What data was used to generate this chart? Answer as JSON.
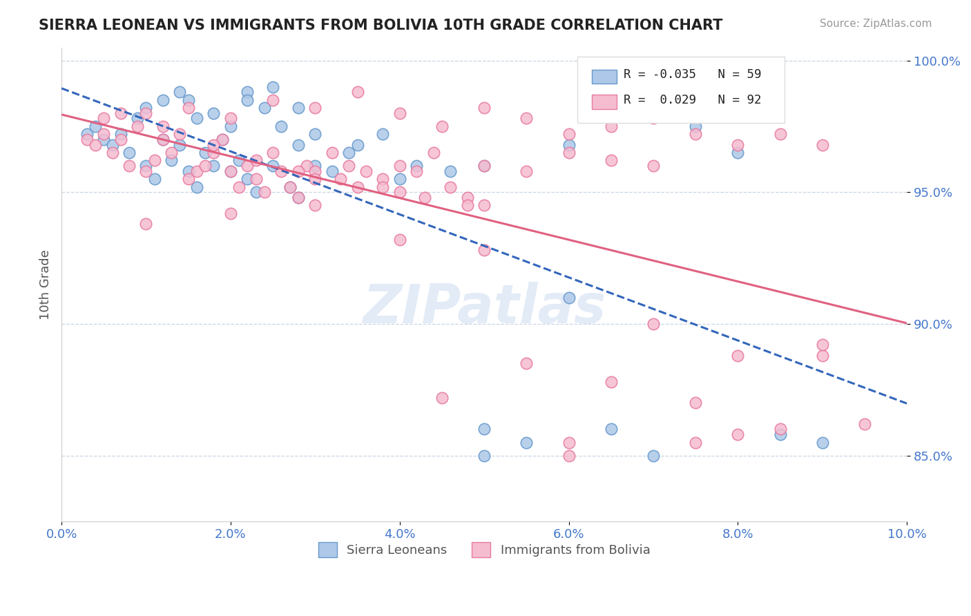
{
  "title": "SIERRA LEONEAN VS IMMIGRANTS FROM BOLIVIA 10TH GRADE CORRELATION CHART",
  "source_text": "Source: ZipAtlas.com",
  "ylabel": "10th Grade",
  "xlim": [
    0.0,
    0.1
  ],
  "ylim": [
    0.825,
    1.005
  ],
  "yticks": [
    0.85,
    0.9,
    0.95,
    1.0
  ],
  "ytick_labels": [
    "85.0%",
    "90.0%",
    "95.0%",
    "100.0%"
  ],
  "xticks": [
    0.0,
    0.02,
    0.04,
    0.06,
    0.08,
    0.1
  ],
  "xtick_labels": [
    "0.0%",
    "2.0%",
    "4.0%",
    "6.0%",
    "8.0%",
    "10.0%"
  ],
  "blue_R": -0.035,
  "blue_N": 59,
  "pink_R": 0.029,
  "pink_N": 92,
  "blue_color": "#adc8e8",
  "blue_edge": "#6699cc",
  "pink_color": "#f5bcd0",
  "pink_edge": "#e87aa0",
  "blue_trend_color": "#3366bb",
  "pink_trend_color": "#e06080",
  "legend_blue_label": "Sierra Leoneans",
  "legend_pink_label": "Immigrants from Bolivia",
  "watermark": "ZIPatlas",
  "blue_x": [
    0.003,
    0.004,
    0.005,
    0.006,
    0.007,
    0.008,
    0.009,
    0.01,
    0.011,
    0.012,
    0.013,
    0.014,
    0.015,
    0.016,
    0.017,
    0.018,
    0.019,
    0.02,
    0.021,
    0.022,
    0.023,
    0.025,
    0.027,
    0.028,
    0.03,
    0.032,
    0.035,
    0.015,
    0.018,
    0.022,
    0.025,
    0.028,
    0.01,
    0.012,
    0.014,
    0.016,
    0.02,
    0.022,
    0.024,
    0.026,
    0.028,
    0.03,
    0.034,
    0.038,
    0.042,
    0.046,
    0.05,
    0.04,
    0.05,
    0.06,
    0.055,
    0.065,
    0.07,
    0.06,
    0.075,
    0.08,
    0.085,
    0.09,
    0.05
  ],
  "blue_y": [
    0.972,
    0.975,
    0.97,
    0.968,
    0.972,
    0.965,
    0.978,
    0.96,
    0.955,
    0.97,
    0.962,
    0.968,
    0.958,
    0.952,
    0.965,
    0.96,
    0.97,
    0.958,
    0.962,
    0.955,
    0.95,
    0.96,
    0.952,
    0.948,
    0.96,
    0.958,
    0.968,
    0.985,
    0.98,
    0.988,
    0.99,
    0.982,
    0.982,
    0.985,
    0.988,
    0.978,
    0.975,
    0.985,
    0.982,
    0.975,
    0.968,
    0.972,
    0.965,
    0.972,
    0.96,
    0.958,
    0.96,
    0.955,
    0.86,
    0.91,
    0.855,
    0.86,
    0.85,
    0.968,
    0.975,
    0.965,
    0.858,
    0.855,
    0.85
  ],
  "pink_x": [
    0.003,
    0.004,
    0.005,
    0.006,
    0.007,
    0.008,
    0.009,
    0.01,
    0.011,
    0.012,
    0.013,
    0.014,
    0.015,
    0.016,
    0.017,
    0.018,
    0.019,
    0.02,
    0.021,
    0.022,
    0.023,
    0.024,
    0.025,
    0.026,
    0.027,
    0.028,
    0.029,
    0.03,
    0.032,
    0.034,
    0.036,
    0.038,
    0.04,
    0.042,
    0.044,
    0.046,
    0.048,
    0.05,
    0.055,
    0.06,
    0.065,
    0.07,
    0.075,
    0.08,
    0.085,
    0.09,
    0.005,
    0.01,
    0.015,
    0.02,
    0.025,
    0.03,
    0.035,
    0.04,
    0.045,
    0.05,
    0.055,
    0.06,
    0.065,
    0.07,
    0.075,
    0.08,
    0.085,
    0.09,
    0.03,
    0.035,
    0.04,
    0.05,
    0.06,
    0.07,
    0.08,
    0.09,
    0.01,
    0.02,
    0.03,
    0.04,
    0.05,
    0.06,
    0.045,
    0.055,
    0.065,
    0.075,
    0.095,
    0.007,
    0.012,
    0.018,
    0.023,
    0.028,
    0.033,
    0.038,
    0.043,
    0.048
  ],
  "pink_y": [
    0.97,
    0.968,
    0.972,
    0.965,
    0.97,
    0.96,
    0.975,
    0.958,
    0.962,
    0.97,
    0.965,
    0.972,
    0.955,
    0.958,
    0.96,
    0.965,
    0.97,
    0.958,
    0.952,
    0.96,
    0.955,
    0.95,
    0.965,
    0.958,
    0.952,
    0.948,
    0.96,
    0.958,
    0.965,
    0.96,
    0.958,
    0.955,
    0.96,
    0.958,
    0.965,
    0.952,
    0.948,
    0.96,
    0.958,
    0.965,
    0.962,
    0.96,
    0.855,
    0.858,
    0.86,
    0.888,
    0.978,
    0.98,
    0.982,
    0.978,
    0.985,
    0.982,
    0.988,
    0.98,
    0.975,
    0.982,
    0.978,
    0.972,
    0.975,
    0.978,
    0.972,
    0.968,
    0.972,
    0.968,
    0.955,
    0.952,
    0.95,
    0.945,
    0.855,
    0.9,
    0.888,
    0.892,
    0.938,
    0.942,
    0.945,
    0.932,
    0.928,
    0.85,
    0.872,
    0.885,
    0.878,
    0.87,
    0.862,
    0.98,
    0.975,
    0.968,
    0.962,
    0.958,
    0.955,
    0.952,
    0.948,
    0.945
  ]
}
